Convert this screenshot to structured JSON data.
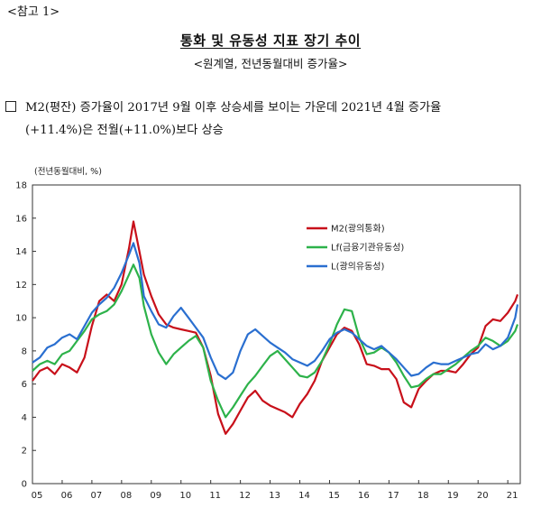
{
  "header": {
    "ref_label": "<참고 1>",
    "title": "통화 및 유동성 지표 장기 추이",
    "subtitle": "<원계열, 전년동월대비 증가율>"
  },
  "summary": {
    "line1": "M2(평잔) 증가율이 2017년 9월 이후 상승세를 보이는 가운데 2021년 4월 증가율",
    "line2": "(+11.4%)은 전월(+11.0%)보다 상승"
  },
  "chart_data": {
    "type": "line",
    "unit_label": "(전년동월대비, %)",
    "ylim": [
      0,
      18
    ],
    "yticks": [
      0,
      2,
      4,
      6,
      8,
      10,
      12,
      14,
      16,
      18
    ],
    "xlim": [
      2005.0,
      2021.42
    ],
    "xticks": [
      "05",
      "06",
      "07",
      "08",
      "09",
      "10",
      "11",
      "12",
      "13",
      "14",
      "15",
      "16",
      "17",
      "18",
      "19",
      "20",
      "21"
    ],
    "grid": false,
    "legend_position": "upper-right",
    "series": [
      {
        "name": "M2(광의통화)",
        "color": "#c8101a",
        "points": [
          [
            2005.0,
            6.2
          ],
          [
            2005.25,
            6.8
          ],
          [
            2005.5,
            7.0
          ],
          [
            2005.75,
            6.6
          ],
          [
            2006.0,
            7.2
          ],
          [
            2006.25,
            7.0
          ],
          [
            2006.5,
            6.7
          ],
          [
            2006.75,
            7.6
          ],
          [
            2007.0,
            9.5
          ],
          [
            2007.25,
            11.0
          ],
          [
            2007.5,
            11.4
          ],
          [
            2007.75,
            11.0
          ],
          [
            2008.0,
            12.0
          ],
          [
            2008.25,
            14.2
          ],
          [
            2008.4,
            15.8
          ],
          [
            2008.6,
            14.0
          ],
          [
            2008.75,
            12.6
          ],
          [
            2009.0,
            11.3
          ],
          [
            2009.25,
            10.2
          ],
          [
            2009.5,
            9.6
          ],
          [
            2009.75,
            9.4
          ],
          [
            2010.0,
            9.3
          ],
          [
            2010.25,
            9.2
          ],
          [
            2010.5,
            9.1
          ],
          [
            2010.75,
            8.2
          ],
          [
            2011.0,
            6.5
          ],
          [
            2011.25,
            4.2
          ],
          [
            2011.5,
            3.0
          ],
          [
            2011.75,
            3.6
          ],
          [
            2012.0,
            4.4
          ],
          [
            2012.25,
            5.2
          ],
          [
            2012.5,
            5.6
          ],
          [
            2012.75,
            5.0
          ],
          [
            2013.0,
            4.7
          ],
          [
            2013.25,
            4.5
          ],
          [
            2013.5,
            4.3
          ],
          [
            2013.75,
            4.0
          ],
          [
            2014.0,
            4.8
          ],
          [
            2014.25,
            5.4
          ],
          [
            2014.5,
            6.2
          ],
          [
            2014.75,
            7.4
          ],
          [
            2015.0,
            8.2
          ],
          [
            2015.25,
            9.0
          ],
          [
            2015.5,
            9.4
          ],
          [
            2015.75,
            9.2
          ],
          [
            2016.0,
            8.4
          ],
          [
            2016.25,
            7.2
          ],
          [
            2016.5,
            7.1
          ],
          [
            2016.75,
            6.9
          ],
          [
            2017.0,
            6.9
          ],
          [
            2017.25,
            6.3
          ],
          [
            2017.5,
            4.9
          ],
          [
            2017.75,
            4.6
          ],
          [
            2018.0,
            5.7
          ],
          [
            2018.25,
            6.2
          ],
          [
            2018.5,
            6.6
          ],
          [
            2018.75,
            6.8
          ],
          [
            2019.0,
            6.8
          ],
          [
            2019.25,
            6.7
          ],
          [
            2019.5,
            7.2
          ],
          [
            2019.75,
            7.8
          ],
          [
            2020.0,
            8.2
          ],
          [
            2020.25,
            9.5
          ],
          [
            2020.5,
            9.9
          ],
          [
            2020.75,
            9.8
          ],
          [
            2021.0,
            10.3
          ],
          [
            2021.25,
            11.0
          ],
          [
            2021.33,
            11.4
          ]
        ]
      },
      {
        "name": "Lf(금융기관유동성)",
        "color": "#2db24a",
        "points": [
          [
            2005.0,
            6.8
          ],
          [
            2005.25,
            7.2
          ],
          [
            2005.5,
            7.4
          ],
          [
            2005.75,
            7.2
          ],
          [
            2006.0,
            7.8
          ],
          [
            2006.25,
            8.0
          ],
          [
            2006.5,
            8.6
          ],
          [
            2006.75,
            9.2
          ],
          [
            2007.0,
            9.9
          ],
          [
            2007.25,
            10.2
          ],
          [
            2007.5,
            10.4
          ],
          [
            2007.75,
            10.8
          ],
          [
            2008.0,
            11.6
          ],
          [
            2008.25,
            12.6
          ],
          [
            2008.4,
            13.2
          ],
          [
            2008.6,
            12.4
          ],
          [
            2008.75,
            10.7
          ],
          [
            2009.0,
            9.0
          ],
          [
            2009.25,
            7.9
          ],
          [
            2009.5,
            7.2
          ],
          [
            2009.75,
            7.8
          ],
          [
            2010.0,
            8.2
          ],
          [
            2010.25,
            8.6
          ],
          [
            2010.5,
            8.9
          ],
          [
            2010.75,
            8.2
          ],
          [
            2011.0,
            6.2
          ],
          [
            2011.25,
            5.0
          ],
          [
            2011.5,
            4.0
          ],
          [
            2011.75,
            4.6
          ],
          [
            2012.0,
            5.3
          ],
          [
            2012.25,
            6.0
          ],
          [
            2012.5,
            6.5
          ],
          [
            2012.75,
            7.1
          ],
          [
            2013.0,
            7.7
          ],
          [
            2013.25,
            8.0
          ],
          [
            2013.5,
            7.5
          ],
          [
            2013.75,
            7.0
          ],
          [
            2014.0,
            6.5
          ],
          [
            2014.25,
            6.4
          ],
          [
            2014.5,
            6.7
          ],
          [
            2014.75,
            7.4
          ],
          [
            2015.0,
            8.4
          ],
          [
            2015.25,
            9.6
          ],
          [
            2015.5,
            10.5
          ],
          [
            2015.75,
            10.4
          ],
          [
            2016.0,
            8.8
          ],
          [
            2016.25,
            7.8
          ],
          [
            2016.5,
            7.9
          ],
          [
            2016.75,
            8.2
          ],
          [
            2017.0,
            7.9
          ],
          [
            2017.25,
            7.3
          ],
          [
            2017.5,
            6.5
          ],
          [
            2017.75,
            5.8
          ],
          [
            2018.0,
            5.9
          ],
          [
            2018.25,
            6.3
          ],
          [
            2018.5,
            6.6
          ],
          [
            2018.75,
            6.6
          ],
          [
            2019.0,
            6.9
          ],
          [
            2019.25,
            7.2
          ],
          [
            2019.5,
            7.6
          ],
          [
            2019.75,
            8.0
          ],
          [
            2020.0,
            8.3
          ],
          [
            2020.25,
            8.8
          ],
          [
            2020.5,
            8.6
          ],
          [
            2020.75,
            8.3
          ],
          [
            2021.0,
            8.6
          ],
          [
            2021.25,
            9.2
          ],
          [
            2021.33,
            9.6
          ]
        ]
      },
      {
        "name": "L(광의유동성)",
        "color": "#2a6fd0",
        "points": [
          [
            2005.0,
            7.3
          ],
          [
            2005.25,
            7.6
          ],
          [
            2005.5,
            8.2
          ],
          [
            2005.75,
            8.4
          ],
          [
            2006.0,
            8.8
          ],
          [
            2006.25,
            9.0
          ],
          [
            2006.5,
            8.7
          ],
          [
            2006.75,
            9.5
          ],
          [
            2007.0,
            10.3
          ],
          [
            2007.25,
            10.8
          ],
          [
            2007.5,
            11.2
          ],
          [
            2007.75,
            11.8
          ],
          [
            2008.0,
            12.7
          ],
          [
            2008.25,
            13.8
          ],
          [
            2008.4,
            14.5
          ],
          [
            2008.6,
            13.3
          ],
          [
            2008.75,
            11.3
          ],
          [
            2009.0,
            10.4
          ],
          [
            2009.25,
            9.6
          ],
          [
            2009.5,
            9.4
          ],
          [
            2009.75,
            10.1
          ],
          [
            2010.0,
            10.6
          ],
          [
            2010.25,
            10.0
          ],
          [
            2010.5,
            9.4
          ],
          [
            2010.75,
            8.8
          ],
          [
            2011.0,
            7.6
          ],
          [
            2011.25,
            6.6
          ],
          [
            2011.5,
            6.3
          ],
          [
            2011.75,
            6.7
          ],
          [
            2012.0,
            8.0
          ],
          [
            2012.25,
            9.0
          ],
          [
            2012.5,
            9.3
          ],
          [
            2012.75,
            8.9
          ],
          [
            2013.0,
            8.5
          ],
          [
            2013.25,
            8.2
          ],
          [
            2013.5,
            7.9
          ],
          [
            2013.75,
            7.5
          ],
          [
            2014.0,
            7.3
          ],
          [
            2014.25,
            7.1
          ],
          [
            2014.5,
            7.4
          ],
          [
            2014.75,
            8.0
          ],
          [
            2015.0,
            8.7
          ],
          [
            2015.25,
            9.1
          ],
          [
            2015.5,
            9.3
          ],
          [
            2015.75,
            9.1
          ],
          [
            2016.0,
            8.7
          ],
          [
            2016.25,
            8.3
          ],
          [
            2016.5,
            8.1
          ],
          [
            2016.75,
            8.3
          ],
          [
            2017.0,
            7.9
          ],
          [
            2017.25,
            7.5
          ],
          [
            2017.5,
            7.0
          ],
          [
            2017.75,
            6.5
          ],
          [
            2018.0,
            6.6
          ],
          [
            2018.25,
            7.0
          ],
          [
            2018.5,
            7.3
          ],
          [
            2018.75,
            7.2
          ],
          [
            2019.0,
            7.2
          ],
          [
            2019.25,
            7.4
          ],
          [
            2019.5,
            7.6
          ],
          [
            2019.75,
            7.8
          ],
          [
            2020.0,
            7.9
          ],
          [
            2020.25,
            8.4
          ],
          [
            2020.5,
            8.1
          ],
          [
            2020.75,
            8.3
          ],
          [
            2021.0,
            8.8
          ],
          [
            2021.25,
            10.0
          ],
          [
            2021.33,
            10.8
          ]
        ]
      }
    ]
  }
}
